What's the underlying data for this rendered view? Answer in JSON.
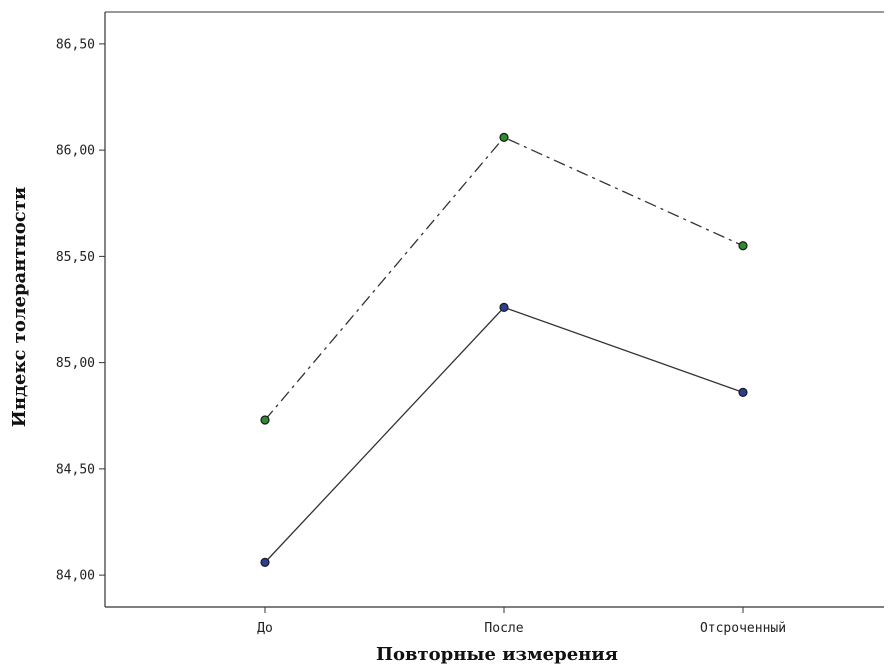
{
  "chart_data": {
    "type": "line",
    "title": "",
    "xlabel": "Повторные измерения",
    "ylabel": "Индекс толерантности",
    "categories": [
      "До",
      "После",
      "Отсроченный"
    ],
    "ylim": [
      83.85,
      86.65
    ],
    "yticks": [
      84.0,
      84.5,
      85.0,
      85.5,
      86.0,
      86.5
    ],
    "ytick_labels": [
      "84,00",
      "84,50",
      "85,00",
      "85,50",
      "86,00",
      "86,50"
    ],
    "grid": false,
    "legend": "none",
    "series": [
      {
        "values": [
          84.73,
          86.06,
          85.55
        ],
        "color": "#2e8b2e",
        "line_style": "dash-dot"
      },
      {
        "values": [
          84.06,
          85.26,
          84.86
        ],
        "color": "#2c3e90",
        "line_style": "solid"
      }
    ]
  }
}
